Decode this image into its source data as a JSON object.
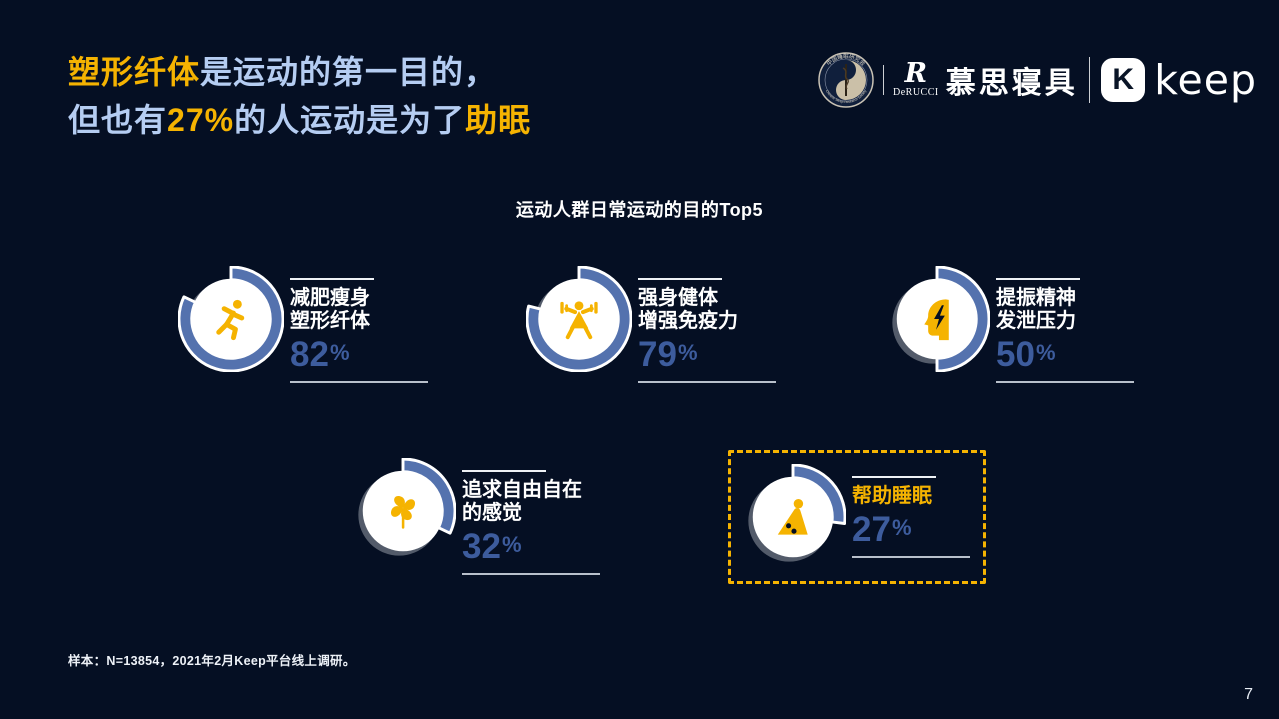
{
  "page": {
    "background": "#050f23",
    "page_number": "7"
  },
  "header": {
    "title": {
      "line1_accent": "塑形纤体",
      "line1_rest": "是运动的第一目的，",
      "line2_pre": "但也有",
      "line2_accent_pct": "27%",
      "line2_mid": "的人运动是为了",
      "line2_accent_end": "助眠"
    },
    "accent_color": "#f5b301",
    "title_color": "#b5cdf2"
  },
  "logos": {
    "csrs": {
      "top_text": "中国睡眠研究会",
      "bottom_text": "Chinese Sleep Research Society"
    },
    "derucci": {
      "monogram": "R",
      "wordmark": "DeRUCCI",
      "brand_cn": "慕思寝具"
    },
    "keep": {
      "monogram": "K",
      "wordmark": "keep"
    }
  },
  "chart_data": {
    "type": "donut-stats",
    "title": "运动人群日常运动的目的Top5",
    "unit": "%",
    "items": [
      {
        "label1": "减肥瘦身",
        "label2": "塑形纤体",
        "value": 82,
        "value_label": "82%",
        "icon": "runner",
        "highlighted": false
      },
      {
        "label1": "强身健体",
        "label2": "增强免疫力",
        "value": 79,
        "value_label": "79%",
        "icon": "weightlifter",
        "highlighted": false
      },
      {
        "label1": "提振精神",
        "label2": "发泄压力",
        "value": 50,
        "value_label": "50%",
        "icon": "head-lightning",
        "highlighted": false
      },
      {
        "label1": "追求自由自在",
        "label2": "的感觉",
        "value": 32,
        "value_label": "32%",
        "icon": "pinwheel",
        "highlighted": false
      },
      {
        "label1": "帮助睡眠",
        "label2": "",
        "value": 27,
        "value_label": "27%",
        "icon": "sleeper",
        "highlighted": true
      }
    ],
    "colors": {
      "arc": "#5472ae",
      "value_text": "#3d5c9d",
      "highlight": "#f5b301",
      "donut_face": "#ffffff"
    }
  },
  "footer": {
    "sample_note": "样本：N=13854，2021年2月Keep平台线上调研。"
  }
}
